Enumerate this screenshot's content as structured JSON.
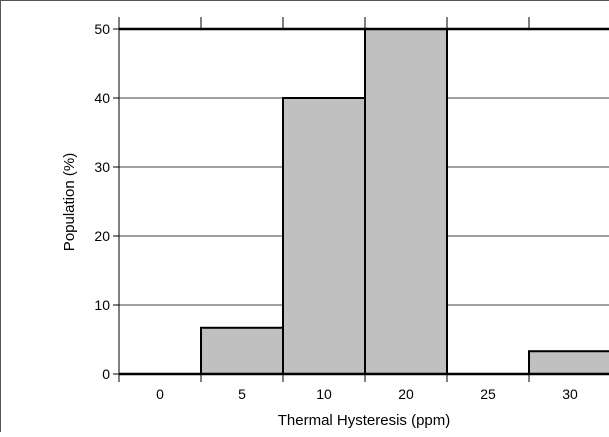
{
  "chart_data": {
    "type": "bar",
    "categories": [
      "0",
      "5",
      "10",
      "20",
      "25",
      "30"
    ],
    "values": [
      0,
      6.7,
      40,
      50,
      0,
      3.3
    ],
    "title": "",
    "xlabel": "Thermal Hysteresis (ppm)",
    "ylabel": "Population (%)",
    "ylim": [
      0,
      50
    ],
    "yticks": [
      0,
      10,
      20,
      30,
      40,
      50
    ],
    "grid": true,
    "bar_color": "#c0c0c0",
    "edge_color": "#000000"
  }
}
